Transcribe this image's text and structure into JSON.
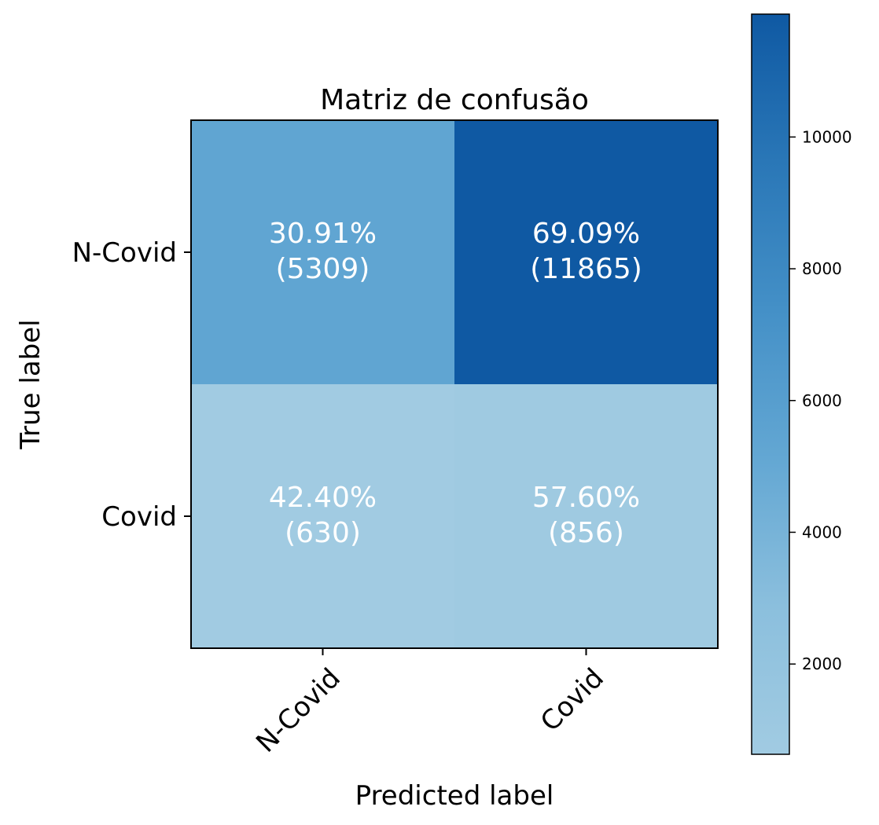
{
  "chart_data": {
    "type": "heatmap",
    "title": "Matriz de confusão",
    "xlabel": "Predicted label",
    "ylabel": "True label",
    "x_categories": [
      "N-Covid",
      "Covid"
    ],
    "y_categories": [
      "N-Covid",
      "Covid"
    ],
    "values": [
      [
        5309,
        11865
      ],
      [
        630,
        856
      ]
    ],
    "percent_labels": [
      [
        "30.91%",
        "69.09%"
      ],
      [
        "42.40%",
        "57.60%"
      ]
    ],
    "count_labels": [
      [
        "(5309)",
        "(11865)"
      ],
      [
        "(630)",
        "(856)"
      ]
    ],
    "colorbar": {
      "min": 630,
      "max": 11865,
      "ticks": [
        2000,
        4000,
        6000,
        8000,
        10000
      ],
      "tick_labels": [
        "2000",
        "4000",
        "6000",
        "8000",
        "10000"
      ]
    },
    "colormap": "Blues",
    "cell_text_color": "#ffffff"
  }
}
